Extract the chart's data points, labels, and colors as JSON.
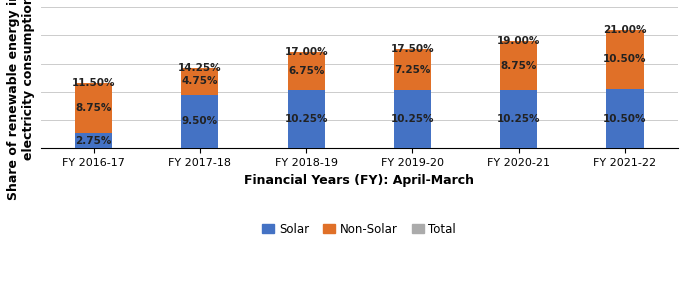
{
  "categories": [
    "FY 2016-17",
    "FY 2017-18",
    "FY 2018-19",
    "FY 2019-20",
    "FY 2020-21",
    "FY 2021-22"
  ],
  "solar": [
    2.75,
    9.5,
    10.25,
    10.25,
    10.25,
    10.5
  ],
  "nonsolar": [
    8.75,
    4.75,
    6.75,
    7.25,
    8.75,
    10.5
  ],
  "total_label": [
    11.5,
    14.25,
    17.0,
    17.5,
    19.0,
    21.0
  ],
  "solar_color": "#4472C4",
  "nonsolar_color": "#E07028",
  "total_color": "#ABABAB",
  "xlabel": "Financial Years (FY): April-March",
  "ylabel": "Share of renewable energy in total\nelectricity consumption",
  "legend_labels": [
    "Solar",
    "Non-Solar",
    "Total"
  ],
  "bar_width": 0.35,
  "ylim": [
    0,
    25
  ],
  "label_fontsize": 7.5,
  "axis_fontsize": 9,
  "tick_fontsize": 8,
  "legend_fontsize": 8.5,
  "bg_color": "#FFFFFF",
  "grid_color": "#CCCCCC"
}
